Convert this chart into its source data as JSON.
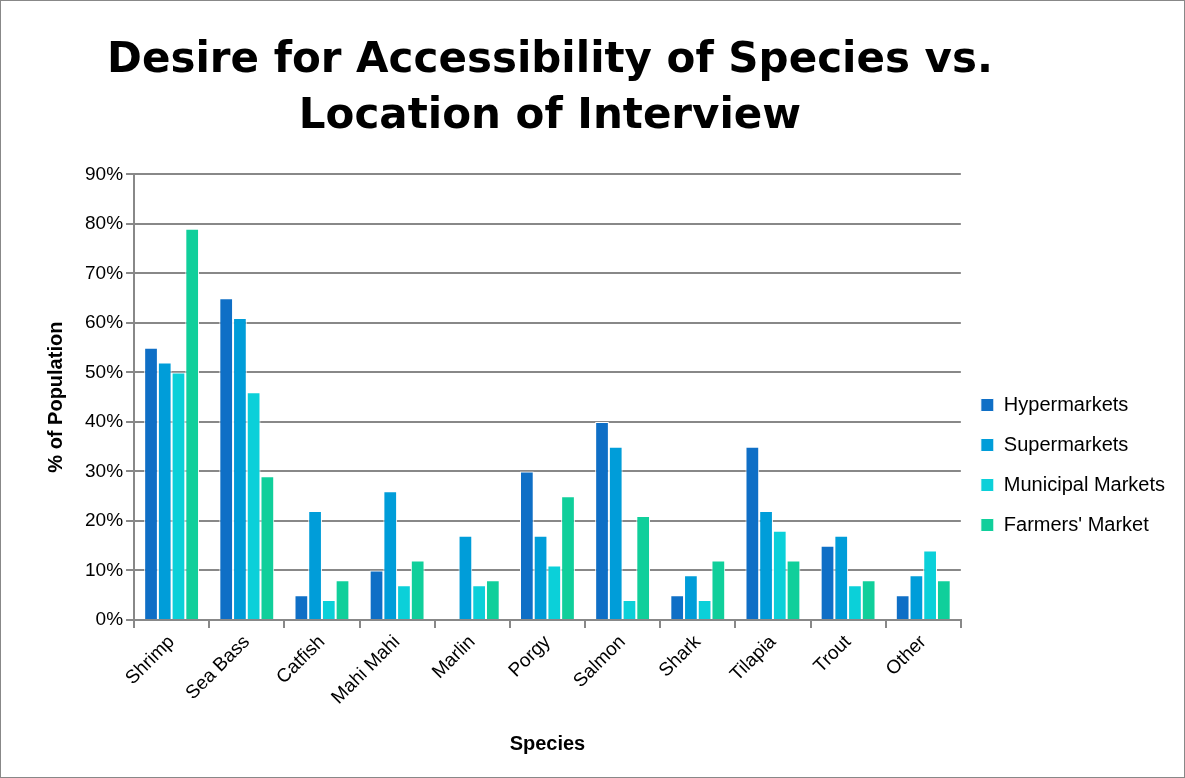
{
  "chart_data": {
    "type": "bar",
    "title": "Desire for Accessibility of Species vs. Location of Interview",
    "xlabel": "Species",
    "ylabel": "% of Population",
    "categories": [
      "Shrimp",
      "Sea Bass",
      "Catfish",
      "Mahi Mahi",
      "Marlin",
      "Porgy",
      "Salmon",
      "Shark",
      "Tilapia",
      "Trout",
      "Other"
    ],
    "series": [
      {
        "name": "Hypermarkets",
        "color": "#0f6fc6",
        "values": [
          55,
          65,
          5,
          10,
          0,
          30,
          40,
          5,
          35,
          15,
          5
        ]
      },
      {
        "name": "Supermarkets",
        "color": "#009dd9",
        "values": [
          52,
          61,
          22,
          26,
          17,
          17,
          35,
          9,
          22,
          17,
          9
        ]
      },
      {
        "name": "Municipal Markets",
        "color": "#0bd0d9",
        "values": [
          50,
          46,
          4,
          7,
          7,
          11,
          4,
          4,
          18,
          7,
          14
        ]
      },
      {
        "name": "Farmers' Market",
        "color": "#10cf9b",
        "values": [
          79,
          29,
          8,
          12,
          8,
          25,
          21,
          12,
          12,
          8,
          8
        ]
      }
    ],
    "ylim": [
      0,
      90
    ],
    "yticks": [
      {
        "value": 0,
        "label": "0%"
      },
      {
        "value": 10,
        "label": "10%"
      },
      {
        "value": 20,
        "label": "20%"
      },
      {
        "value": 30,
        "label": "30%"
      },
      {
        "value": 40,
        "label": "40%"
      },
      {
        "value": 50,
        "label": "50%"
      },
      {
        "value": 60,
        "label": "60%"
      },
      {
        "value": 70,
        "label": "70%"
      },
      {
        "value": 80,
        "label": "80%"
      },
      {
        "value": 90,
        "label": "90%"
      }
    ],
    "grid": "y",
    "legend": "right"
  }
}
